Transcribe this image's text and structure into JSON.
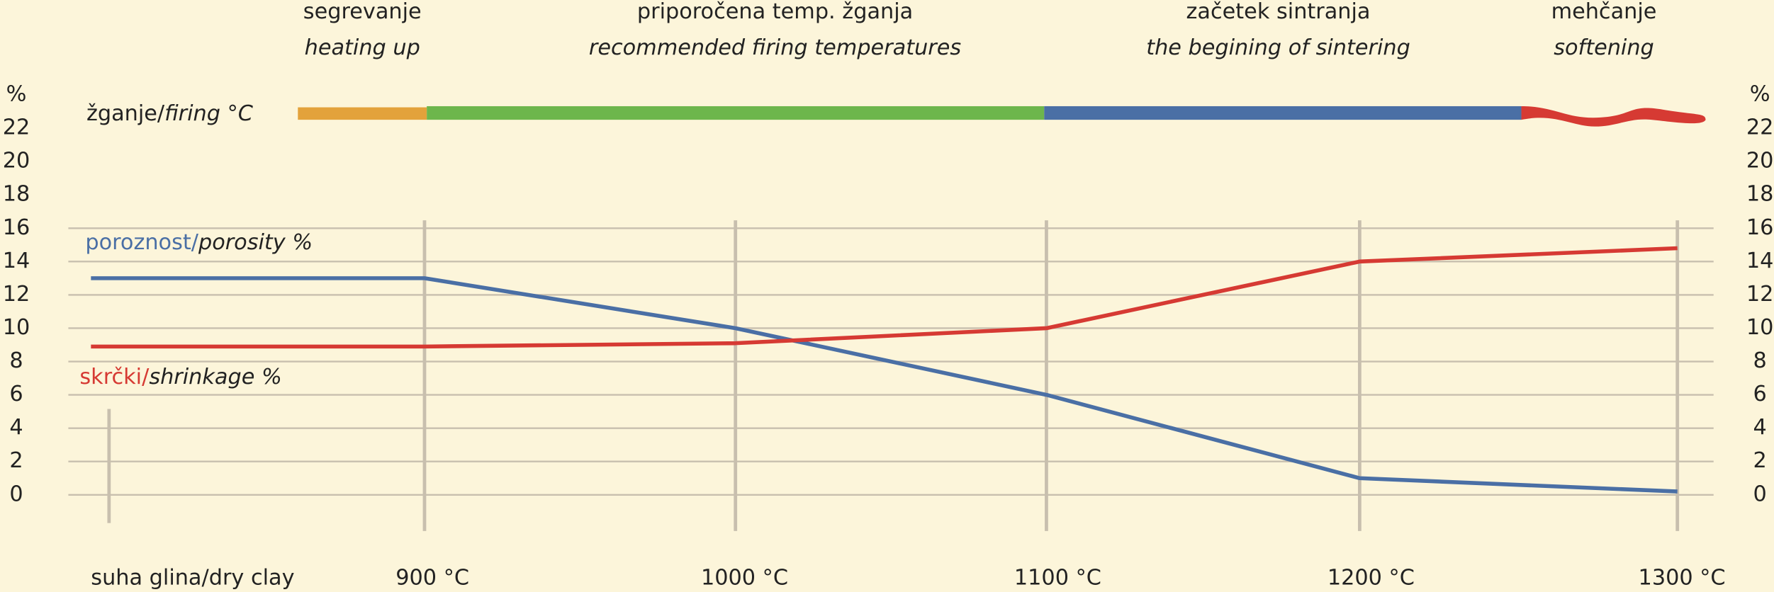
{
  "chart_data": {
    "type": "line",
    "y_unit": "%",
    "categories": [
      "suha glina/dry clay",
      "900 °C",
      "1000 °C",
      "1100 °C",
      "1200 °C",
      "1300 °C"
    ],
    "series": [
      {
        "name": "poroznost/",
        "name_en": "porosity %",
        "color": "#4a6fa5",
        "values": [
          13,
          13,
          10,
          6,
          1,
          0.2
        ]
      },
      {
        "name": "skrčki/",
        "name_en": "shrinkage %",
        "color": "#d63a33",
        "values": [
          8.9,
          8.9,
          9.1,
          10,
          14,
          14.8
        ]
      }
    ],
    "ylim": [
      0,
      24
    ],
    "yticks": [
      0,
      2,
      4,
      6,
      8,
      10,
      12,
      14,
      16,
      18,
      20,
      22
    ],
    "grid": true,
    "firing": {
      "label": "žganje/",
      "label_en": "firing °C",
      "phases": [
        {
          "name": "segrevanje",
          "name_en": "heating up",
          "color": "#e3a23b"
        },
        {
          "name": "priporočena temp. žganja",
          "name_en": "recommended firing temperatures",
          "color": "#6db64c"
        },
        {
          "name": "začetek sintranja",
          "name_en": "the begining of sintering",
          "color": "#4a6fa5"
        },
        {
          "name": "mehčanje",
          "name_en": "softening",
          "color": "#d63a33"
        }
      ]
    }
  }
}
